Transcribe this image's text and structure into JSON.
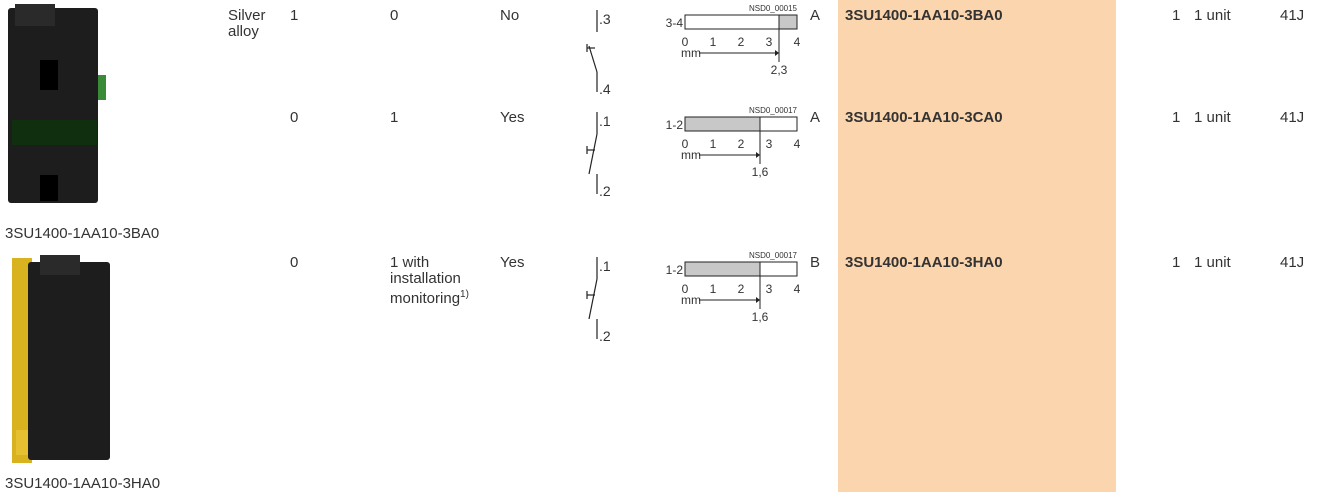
{
  "images": [
    {
      "caption": "3SU1400-1AA10-3BA0"
    },
    {
      "caption": "3SU1400-1AA10-3HA0"
    }
  ],
  "material": "Silver alloy",
  "rows": [
    {
      "no": "1",
      "nc": "0",
      "positive": "No",
      "symbol": {
        "top": ".3",
        "bottom": ".4"
      },
      "diagram": {
        "code": "NSD0_00015",
        "label": "3-4",
        "ticks": [
          "0",
          "1",
          "2",
          "3",
          "4"
        ],
        "unit": "mm",
        "point": "2,3"
      },
      "letter": "A",
      "article": "3SU1400-1AA10-3BA0",
      "pu": "1",
      "ps": "1 unit",
      "pg": "41J"
    },
    {
      "no": "0",
      "nc": "1",
      "positive": "Yes",
      "symbol": {
        "top": ".1",
        "bottom": ".2"
      },
      "diagram": {
        "code": "NSD0_00017",
        "label": "1-2",
        "ticks": [
          "0",
          "1",
          "2",
          "3",
          "4"
        ],
        "unit": "mm",
        "point": "1,6"
      },
      "letter": "A",
      "article": "3SU1400-1AA10-3CA0",
      "pu": "1",
      "ps": "1 unit",
      "pg": "41J"
    },
    {
      "no": "0",
      "nc": "1 with installation monitoring",
      "footnote": "1)",
      "positive": "Yes",
      "symbol": {
        "top": ".1",
        "bottom": ".2"
      },
      "diagram": {
        "code": "NSD0_00017",
        "label": "1-2",
        "ticks": [
          "0",
          "1",
          "2",
          "3",
          "4"
        ],
        "unit": "mm",
        "point": "1,6"
      },
      "letter": "B",
      "article": "3SU1400-1AA10-3HA0",
      "pu": "1",
      "ps": "1 unit",
      "pg": "41J"
    }
  ]
}
